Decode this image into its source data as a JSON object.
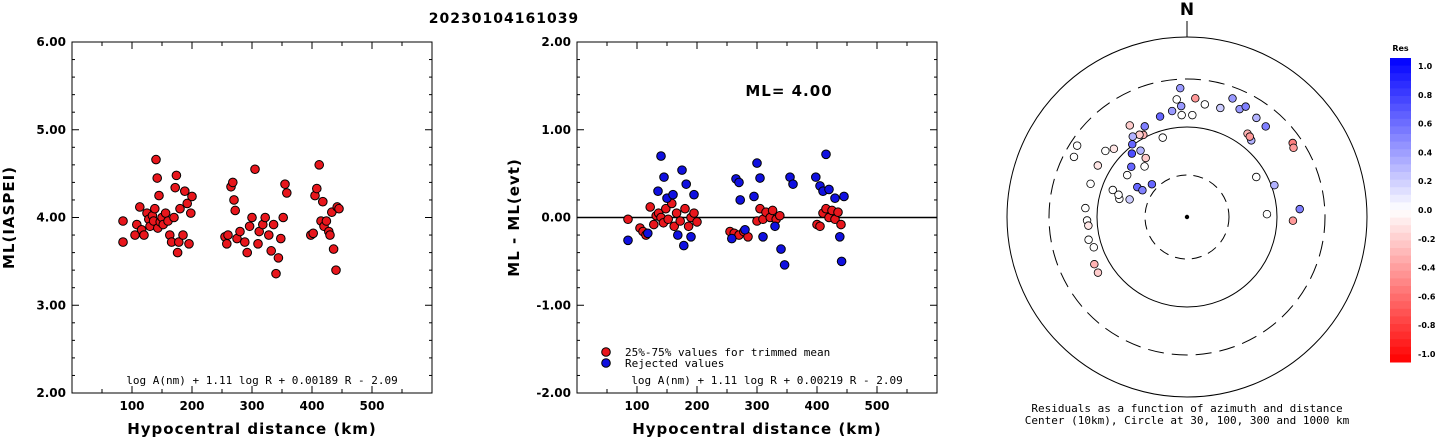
{
  "title": "20230104161039",
  "chart_data": [
    {
      "type": "scatter",
      "name": "ml-vs-distance",
      "xlabel": "Hypocentral distance (km)",
      "ylabel": "ML(IASPEI)",
      "xlim": [
        0,
        600
      ],
      "ylim": [
        2,
        6
      ],
      "xticks": [
        "100",
        "200",
        "300",
        "400",
        "500"
      ],
      "yticks": [
        "2.00",
        "3.00",
        "4.00",
        "5.00",
        "6.00"
      ],
      "formula": "log A(nm) + 1.11 log R + 0.00189 R - 2.09",
      "color": "#e8161c",
      "points": [
        [
          85,
          3.72
        ],
        [
          85,
          3.96
        ],
        [
          105,
          3.8
        ],
        [
          108,
          3.92
        ],
        [
          113,
          4.12
        ],
        [
          116,
          3.86
        ],
        [
          120,
          3.8
        ],
        [
          125,
          4.05
        ],
        [
          128,
          3.98
        ],
        [
          130,
          3.9
        ],
        [
          134,
          4.02
        ],
        [
          136,
          3.96
        ],
        [
          138,
          4.1
        ],
        [
          140,
          4.66
        ],
        [
          142,
          4.45
        ],
        [
          143,
          3.88
        ],
        [
          145,
          4.25
        ],
        [
          147,
          3.95
        ],
        [
          150,
          4.0
        ],
        [
          152,
          3.92
        ],
        [
          156,
          4.05
        ],
        [
          160,
          3.96
        ],
        [
          163,
          3.8
        ],
        [
          166,
          3.72
        ],
        [
          170,
          4.0
        ],
        [
          172,
          4.34
        ],
        [
          174,
          4.48
        ],
        [
          176,
          3.6
        ],
        [
          178,
          3.72
        ],
        [
          180,
          4.1
        ],
        [
          185,
          3.8
        ],
        [
          188,
          4.3
        ],
        [
          192,
          4.16
        ],
        [
          195,
          3.7
        ],
        [
          198,
          4.05
        ],
        [
          200,
          4.24
        ],
        [
          255,
          3.78
        ],
        [
          258,
          3.7
        ],
        [
          260,
          3.8
        ],
        [
          265,
          4.35
        ],
        [
          268,
          4.4
        ],
        [
          270,
          4.2
        ],
        [
          272,
          4.08
        ],
        [
          275,
          3.76
        ],
        [
          280,
          3.84
        ],
        [
          288,
          3.72
        ],
        [
          292,
          3.6
        ],
        [
          296,
          3.9
        ],
        [
          300,
          4.0
        ],
        [
          305,
          4.55
        ],
        [
          310,
          3.7
        ],
        [
          312,
          3.84
        ],
        [
          318,
          3.92
        ],
        [
          322,
          4.0
        ],
        [
          328,
          3.8
        ],
        [
          332,
          3.62
        ],
        [
          336,
          3.92
        ],
        [
          340,
          3.36
        ],
        [
          344,
          3.54
        ],
        [
          348,
          3.76
        ],
        [
          352,
          4.0
        ],
        [
          355,
          4.38
        ],
        [
          358,
          4.28
        ],
        [
          398,
          3.8
        ],
        [
          402,
          3.82
        ],
        [
          405,
          4.25
        ],
        [
          408,
          4.33
        ],
        [
          412,
          4.6
        ],
        [
          415,
          3.96
        ],
        [
          418,
          4.18
        ],
        [
          420,
          3.9
        ],
        [
          424,
          3.96
        ],
        [
          428,
          3.84
        ],
        [
          430,
          3.8
        ],
        [
          433,
          4.06
        ],
        [
          436,
          3.64
        ],
        [
          440,
          3.4
        ],
        [
          442,
          4.12
        ],
        [
          445,
          4.1
        ]
      ]
    },
    {
      "type": "scatter",
      "name": "residuals-vs-distance",
      "xlabel": "Hypocentral distance (km)",
      "ylabel": "ML - ML(evt)",
      "xlim": [
        0,
        600
      ],
      "ylim": [
        -2,
        2
      ],
      "xticks": [
        "100",
        "200",
        "300",
        "400",
        "500"
      ],
      "yticks": [
        "-2.00",
        "-1.00",
        "0.00",
        "1.00",
        "2.00"
      ],
      "ml_label": "ML= 4.00",
      "formula": "log A(nm) + 1.11 log R + 0.00219 R - 2.09",
      "legend": [
        {
          "label": "25%-75% values for trimmed mean",
          "color": "#e8161c"
        },
        {
          "label": "Rejected values",
          "color": "#1010e0"
        }
      ],
      "accepted": [
        [
          85,
          -0.02
        ],
        [
          105,
          -0.12
        ],
        [
          110,
          -0.16
        ],
        [
          115,
          -0.2
        ],
        [
          122,
          0.12
        ],
        [
          128,
          -0.08
        ],
        [
          132,
          0.02
        ],
        [
          136,
          0.05
        ],
        [
          140,
          0.0
        ],
        [
          144,
          -0.06
        ],
        [
          148,
          0.1
        ],
        [
          152,
          -0.02
        ],
        [
          158,
          0.16
        ],
        [
          162,
          -0.1
        ],
        [
          166,
          0.05
        ],
        [
          172,
          -0.04
        ],
        [
          180,
          0.1
        ],
        [
          186,
          -0.1
        ],
        [
          190,
          0.0
        ],
        [
          195,
          0.05
        ],
        [
          200,
          -0.05
        ],
        [
          255,
          -0.16
        ],
        [
          262,
          -0.18
        ],
        [
          270,
          -0.2
        ],
        [
          278,
          -0.16
        ],
        [
          285,
          -0.22
        ],
        [
          300,
          -0.04
        ],
        [
          305,
          0.1
        ],
        [
          310,
          -0.02
        ],
        [
          315,
          0.06
        ],
        [
          322,
          0.0
        ],
        [
          326,
          0.08
        ],
        [
          332,
          -0.02
        ],
        [
          338,
          0.02
        ],
        [
          400,
          -0.08
        ],
        [
          405,
          -0.1
        ],
        [
          410,
          0.05
        ],
        [
          415,
          0.1
        ],
        [
          420,
          0.0
        ],
        [
          425,
          0.08
        ],
        [
          430,
          -0.02
        ],
        [
          435,
          0.06
        ],
        [
          440,
          -0.08
        ]
      ],
      "rejected": [
        [
          85,
          -0.26
        ],
        [
          118,
          -0.18
        ],
        [
          135,
          0.3
        ],
        [
          140,
          0.7
        ],
        [
          145,
          0.46
        ],
        [
          150,
          0.22
        ],
        [
          160,
          0.26
        ],
        [
          168,
          -0.2
        ],
        [
          175,
          0.54
        ],
        [
          178,
          -0.32
        ],
        [
          182,
          0.38
        ],
        [
          190,
          -0.22
        ],
        [
          195,
          0.26
        ],
        [
          258,
          -0.24
        ],
        [
          265,
          0.44
        ],
        [
          270,
          0.4
        ],
        [
          272,
          0.2
        ],
        [
          280,
          -0.14
        ],
        [
          295,
          0.24
        ],
        [
          300,
          0.62
        ],
        [
          305,
          0.45
        ],
        [
          310,
          -0.22
        ],
        [
          330,
          -0.1
        ],
        [
          340,
          -0.36
        ],
        [
          346,
          -0.54
        ],
        [
          355,
          0.46
        ],
        [
          360,
          0.38
        ],
        [
          398,
          0.46
        ],
        [
          405,
          0.36
        ],
        [
          410,
          0.3
        ],
        [
          415,
          0.72
        ],
        [
          420,
          0.32
        ],
        [
          430,
          0.22
        ],
        [
          438,
          -0.22
        ],
        [
          441,
          -0.5
        ],
        [
          445,
          0.24
        ]
      ]
    },
    {
      "type": "scatter",
      "name": "azimuth-distance-residuals",
      "north_label": "N",
      "caption_line1": "Residuals as a function of azimuth and distance",
      "caption_line2": "Center (10km), Circle at 30, 100, 300 and 1000 km",
      "colorbar_title": "Res",
      "colorbar_ticks": [
        "1.0",
        "0.8",
        "0.6",
        "0.4",
        "0.2",
        "0.0",
        "-0.2",
        "-0.4",
        "-0.6",
        "-0.8",
        "-1.0"
      ],
      "stations": [
        [
          -62,
          128,
          0.0
        ],
        [
          -57,
          131,
          0.0
        ],
        [
          -70,
          79,
          0.0
        ],
        [
          -51,
          105,
          0.0
        ],
        [
          55,
          129,
          -0.5
        ],
        [
          57,
          127,
          -0.4
        ],
        [
          -3,
          102,
          0.0
        ],
        [
          3,
          102,
          0.0
        ],
        [
          -75,
          70,
          0.0
        ],
        [
          -72,
          72,
          0.0
        ],
        [
          -47,
          100,
          -0.1
        ],
        [
          -32,
          108,
          -0.2
        ],
        [
          -60,
          103,
          -0.1
        ],
        [
          -71,
          102,
          0.0
        ],
        [
          -85,
          102,
          0.0
        ],
        [
          -92,
          100,
          0.0
        ],
        [
          -95,
          99,
          -0.1
        ],
        [
          -103,
          101,
          0.0
        ],
        [
          -108,
          98,
          0.0
        ],
        [
          -117,
          104,
          -0.3
        ],
        [
          -122,
          105,
          -0.2
        ],
        [
          92,
          106,
          -0.4
        ],
        [
          70,
          93,
          0.3
        ],
        [
          86,
          113,
          0.5
        ],
        [
          -73,
          60,
          0.2
        ],
        [
          -59,
          58,
          0.6
        ],
        [
          -47,
          48,
          0.6
        ],
        [
          -59,
          52,
          0.5
        ],
        [
          -55,
          73,
          0.0
        ],
        [
          -48,
          75,
          0.6
        ],
        [
          -40,
          66,
          0.0
        ],
        [
          -35,
          72,
          -0.2
        ],
        [
          -35,
          81,
          0.3
        ],
        [
          -41,
          84,
          0.7
        ],
        [
          -37,
          91,
          0.6
        ],
        [
          -28,
          93,
          -0.3
        ],
        [
          -30,
          95,
          -0.2
        ],
        [
          -34,
          97,
          0.3
        ],
        [
          -25,
          100,
          0.5
        ],
        [
          -15,
          104,
          0.6
        ],
        [
          -8,
          107,
          0.4
        ],
        [
          -3,
          111,
          0.4
        ],
        [
          -5,
          118,
          0.0
        ],
        [
          -3,
          129,
          0.4
        ],
        [
          4,
          119,
          -0.4
        ],
        [
          9,
          114,
          0.0
        ],
        [
          17,
          114,
          0.2
        ],
        [
          26,
          120,
          0.4
        ],
        [
          21,
          127,
          0.4
        ],
        [
          28,
          125,
          0.5
        ],
        [
          35,
          121,
          0.3
        ],
        [
          41,
          120,
          0.5
        ],
        [
          40,
          100,
          0.3
        ],
        [
          36,
          103,
          -0.3
        ],
        [
          38,
          102,
          -0.4
        ],
        [
          60,
          80,
          0.0
        ],
        [
          88,
          80,
          0.0
        ],
        [
          -17,
          83,
          0.0
        ]
      ]
    }
  ]
}
